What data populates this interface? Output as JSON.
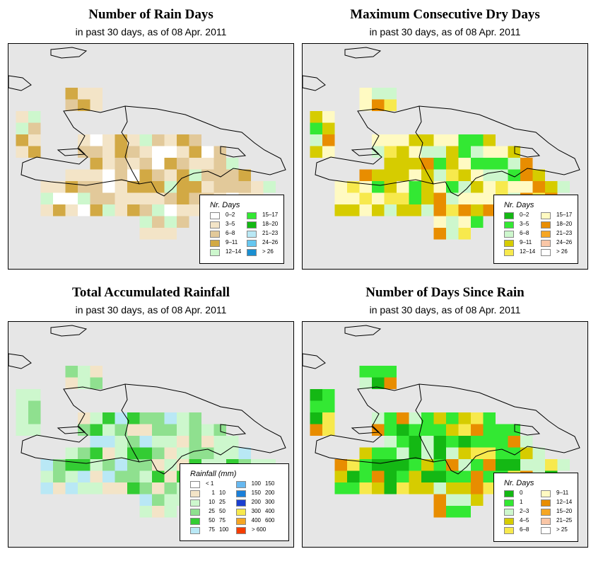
{
  "panels": [
    {
      "id": "rain-days",
      "title": "Number of Rain Days",
      "subtitle": "in past 30 days, as of  08 Apr. 2011",
      "legend_title": "Nr. Days",
      "legend": [
        {
          "label": "0–2",
          "color": "#ffffff"
        },
        {
          "label": "3–5",
          "color": "#f3e4c7"
        },
        {
          "label": "6–8",
          "color": "#e2c99a"
        },
        {
          "label": "9–11",
          "color": "#d2a944"
        },
        {
          "label": "12–14",
          "color": "#cdf7cd"
        },
        {
          "label": "15–17",
          "color": "#33e833"
        },
        {
          "label": "18–20",
          "color": "#14b814"
        },
        {
          "label": "21–23",
          "color": "#b9e8f5"
        },
        {
          "label": "24–26",
          "color": "#66c7f0"
        },
        {
          "label": "> 26",
          "color": "#1a8fd1"
        }
      ]
    },
    {
      "id": "dry-days",
      "title": "Maximum Consecutive Dry Days",
      "subtitle": "in past 30 days, as of  08 Apr. 2011",
      "legend_title": "Nr. Days",
      "legend": [
        {
          "label": "0–2",
          "color": "#14b814"
        },
        {
          "label": "3–5",
          "color": "#33e833"
        },
        {
          "label": "6–8",
          "color": "#cdf7cd"
        },
        {
          "label": "9–11",
          "color": "#d6cc00"
        },
        {
          "label": "12–14",
          "color": "#f7e94d"
        },
        {
          "label": "15–17",
          "color": "#fffac2"
        },
        {
          "label": "18–20",
          "color": "#e88d00"
        },
        {
          "label": "21–23",
          "color": "#f5a623"
        },
        {
          "label": "24–26",
          "color": "#f9c6a6"
        },
        {
          "label": "> 26",
          "color": "#ffffff"
        }
      ]
    },
    {
      "id": "rainfall",
      "title": "Total Accumulated Rainfall",
      "subtitle": "in past 30 days, as of  08 Apr. 2011",
      "legend_title": "Rainfall (mm)",
      "legend": [
        {
          "from": "",
          "to": "< 1",
          "color": "#ffffff"
        },
        {
          "from": "1",
          "to": "10",
          "color": "#f3e4c7"
        },
        {
          "from": "10",
          "to": "25",
          "color": "#cdf7cd"
        },
        {
          "from": "25",
          "to": "50",
          "color": "#8fe08f"
        },
        {
          "from": "50",
          "to": "75",
          "color": "#33cc33"
        },
        {
          "from": "75",
          "to": "100",
          "color": "#b9e8f5"
        },
        {
          "from": "100",
          "to": "150",
          "color": "#66b8f0"
        },
        {
          "from": "150",
          "to": "200",
          "color": "#1a7fd9"
        },
        {
          "from": "200",
          "to": "300",
          "color": "#1a3fd1"
        },
        {
          "from": "300",
          "to": "400",
          "color": "#f7e94d"
        },
        {
          "from": "400",
          "to": "600",
          "color": "#f5a623"
        },
        {
          "from": "",
          "to": "> 600",
          "color": "#f53d00"
        }
      ]
    },
    {
      "id": "since-rain",
      "title": "Number of Days Since Rain",
      "subtitle": "in past 30 days, as of  08 Apr. 2011",
      "legend_title": "Nr. Days",
      "legend": [
        {
          "label": "0",
          "color": "#14b814"
        },
        {
          "label": "1",
          "color": "#33e833"
        },
        {
          "label": "2–3",
          "color": "#cdf7cd"
        },
        {
          "label": "4–5",
          "color": "#d6cc00"
        },
        {
          "label": "6–8",
          "color": "#f7e94d"
        },
        {
          "label": "9–11",
          "color": "#fffac2"
        },
        {
          "label": "12–14",
          "color": "#e88d00"
        },
        {
          "label": "15–20",
          "color": "#f5a623"
        },
        {
          "label": "21–25",
          "color": "#f9c6a6"
        },
        {
          "label": "> 25",
          "color": "#ffffff"
        }
      ]
    }
  ],
  "map_background": "#e6e6e6"
}
